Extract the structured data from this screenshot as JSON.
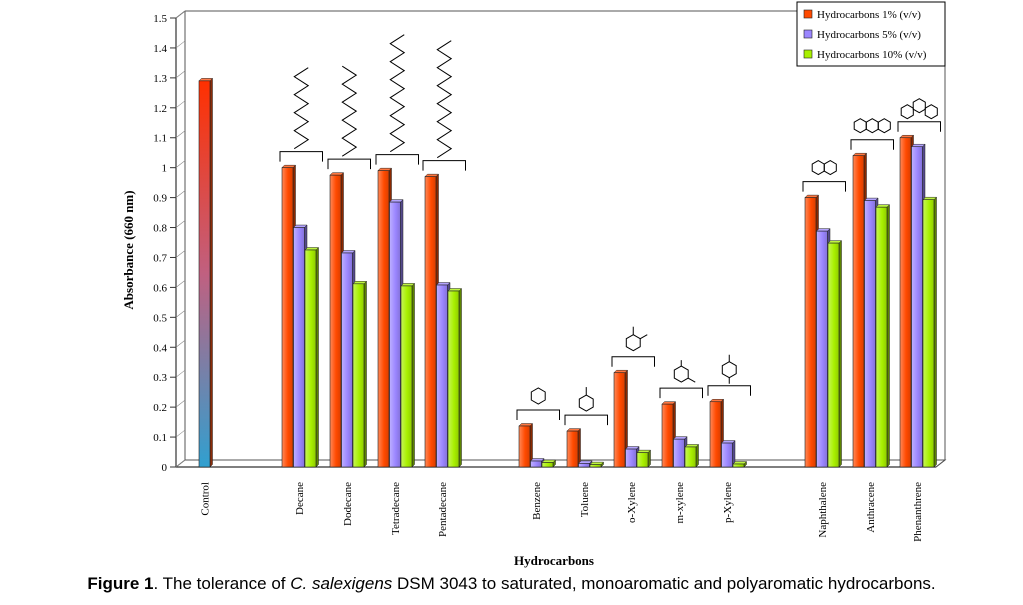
{
  "chart_data": {
    "type": "bar",
    "subtype": "3d-grouped",
    "ylabel": "Absorbance (660 nm)",
    "xlabel": "Hydrocarbons",
    "ylim": [
      0,
      1.5
    ],
    "yticks": [
      "0",
      "0.1",
      "0.2",
      "0.3",
      "0.4",
      "0.5",
      "0.6",
      "0.7",
      "0.8",
      "0.9",
      "1",
      "1.1",
      "1.2",
      "1.3",
      "1.4",
      "1.5"
    ],
    "legend_position": "top-right",
    "control": {
      "label": "Control",
      "value": 1.29
    },
    "series": [
      {
        "name": "Hydrocarbons 1% (v/v)",
        "color": "#ff4a00"
      },
      {
        "name": "Hydrocarbons 5% (v/v)",
        "color": "#9b86ff"
      },
      {
        "name": "Hydrocarbons 10% (v/v)",
        "color": "#a8f000"
      }
    ],
    "groups": [
      {
        "label": "Decane",
        "values": [
          1.0,
          0.8,
          0.725
        ],
        "structure": "alkane-short"
      },
      {
        "label": "Dodecane",
        "values": [
          0.975,
          0.715,
          0.612
        ],
        "structure": "alkane-short"
      },
      {
        "label": "Tetradecane",
        "values": [
          0.99,
          0.885,
          0.605
        ],
        "structure": "alkane-long"
      },
      {
        "label": "Pentadecane",
        "values": [
          0.97,
          0.608,
          0.588
        ],
        "structure": "alkane-long"
      },
      {
        "label": "Benzene",
        "values": [
          0.137,
          0.02,
          0.015
        ],
        "structure": "benzene"
      },
      {
        "label": "Toluene",
        "values": [
          0.12,
          0.012,
          0.008
        ],
        "structure": "toluene"
      },
      {
        "label": "o-Xylene",
        "values": [
          0.315,
          0.06,
          0.048
        ],
        "structure": "o-xylene"
      },
      {
        "label": "m-xylene",
        "values": [
          0.21,
          0.093,
          0.067
        ],
        "structure": "m-xylene"
      },
      {
        "label": "p-Xylene",
        "values": [
          0.218,
          0.08,
          0.01
        ],
        "structure": "p-xylene"
      },
      {
        "label": "Naphthalene",
        "values": [
          0.9,
          0.788,
          0.748
        ],
        "structure": "naphthalene"
      },
      {
        "label": "Anthracene",
        "values": [
          1.04,
          0.89,
          0.868
        ],
        "structure": "anthracene"
      },
      {
        "label": "Phenanthrene",
        "values": [
          1.1,
          1.07,
          0.893
        ],
        "structure": "phenanthrene"
      }
    ]
  },
  "caption": {
    "label": "Figure 1",
    "part1": ". The tolerance of ",
    "species": "C. salexigens",
    "part2": " DSM 3043 to saturated, monoaromatic and polyaromatic hydrocarbons."
  }
}
